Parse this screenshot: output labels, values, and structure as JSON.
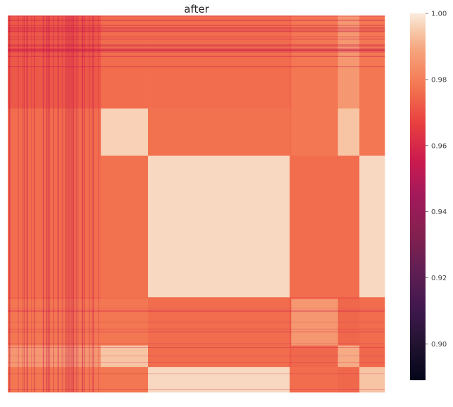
{
  "chart_data": {
    "type": "heatmap",
    "title": "after",
    "xlabel": "",
    "ylabel": "",
    "grid": false,
    "colormap": "rocket",
    "colorbar": {
      "vmin": 0.889,
      "vmax": 1.0,
      "ticks": [
        0.9,
        0.92,
        0.94,
        0.96,
        0.98,
        1.0
      ],
      "tick_labels": [
        "0.90",
        "0.92",
        "0.94",
        "0.96",
        "0.98",
        "1.00"
      ]
    },
    "block_boundaries": [
      0,
      0.247,
      0.372,
      0.748,
      0.752,
      0.876,
      0.933,
      1.0
    ],
    "block_matrix": [
      [
        0.972,
        0.976,
        0.976,
        0.974,
        0.978,
        0.986,
        0.978
      ],
      [
        0.976,
        0.996,
        0.977,
        0.976,
        0.978,
        0.994,
        0.978
      ],
      [
        0.976,
        0.977,
        0.997,
        0.976,
        0.976,
        0.976,
        0.997
      ],
      [
        0.974,
        0.976,
        0.976,
        0.972,
        0.972,
        0.972,
        0.976
      ],
      [
        0.978,
        0.978,
        0.976,
        0.972,
        0.986,
        0.975,
        0.976
      ],
      [
        0.986,
        0.994,
        0.976,
        0.972,
        0.975,
        0.99,
        0.975
      ],
      [
        0.978,
        0.978,
        0.997,
        0.976,
        0.976,
        0.975,
        0.994
      ]
    ]
  }
}
